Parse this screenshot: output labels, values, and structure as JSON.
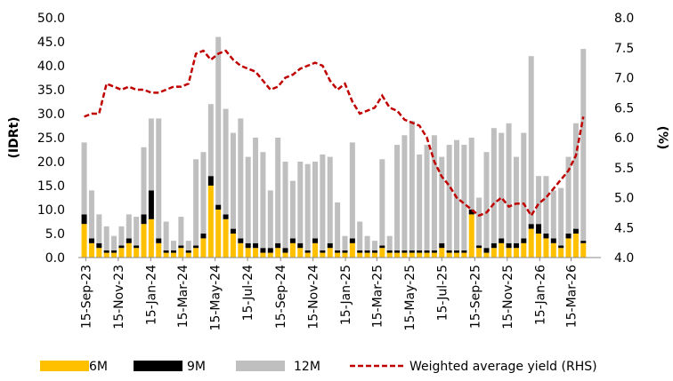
{
  "chart_data": {
    "type": "bar_line",
    "ylabel": "(IDRt)",
    "y2label": "(%)",
    "x": [
      "2023-09-12",
      "2023-09-26",
      "2023-10-10",
      "2023-10-24",
      "2023-11-07",
      "2023-11-21",
      "2023-12-05",
      "2023-12-19",
      "2024-01-02",
      "2024-01-16",
      "2024-01-30",
      "2024-02-13",
      "2024-02-27",
      "2024-03-12",
      "2024-03-26",
      "2024-04-09",
      "2024-04-23",
      "2024-05-07",
      "2024-05-21",
      "2024-06-04",
      "2024-06-18",
      "2024-07-02",
      "2024-07-16",
      "2024-07-30",
      "2024-08-13",
      "2024-08-27",
      "2024-09-10",
      "2024-09-24",
      "2024-10-08",
      "2024-10-22",
      "2024-11-05",
      "2024-11-19",
      "2024-12-03",
      "2024-12-17",
      "2024-12-31",
      "2025-01-14",
      "2025-01-28",
      "2025-02-11",
      "2025-02-25",
      "2025-03-11",
      "2025-03-25",
      "2025-04-08",
      "2025-04-22",
      "2025-05-06",
      "2025-05-20",
      "2025-06-03",
      "2025-06-17",
      "2025-07-01",
      "2025-07-15",
      "2025-07-29",
      "2025-08-12",
      "2025-08-26",
      "2025-09-09",
      "2025-09-23",
      "2025-10-07",
      "2025-10-21",
      "2025-11-04",
      "2025-11-18",
      "2025-12-02",
      "2025-12-16",
      "2025-12-30",
      "2026-01-13",
      "2026-01-27",
      "2026-02-10",
      "2026-02-24",
      "2026-03-10",
      "2026-03-24",
      "2026-04-07"
    ],
    "xlim": [
      "2023-09-01",
      "2026-05-10"
    ],
    "xticks": [
      {
        "value": "2023-09-15",
        "label": "15-Sep-23"
      },
      {
        "value": "2023-11-15",
        "label": "15-Nov-23"
      },
      {
        "value": "2024-01-15",
        "label": "15-Jan-24"
      },
      {
        "value": "2024-03-15",
        "label": "15-Mar-24"
      },
      {
        "value": "2024-05-15",
        "label": "15-May-24"
      },
      {
        "value": "2024-07-15",
        "label": "15-Jul-24"
      },
      {
        "value": "2024-09-15",
        "label": "15-Sep-24"
      },
      {
        "value": "2024-11-15",
        "label": "15-Nov-24"
      },
      {
        "value": "2025-01-15",
        "label": "15-Jan-25"
      },
      {
        "value": "2025-03-15",
        "label": "15-Mar-25"
      },
      {
        "value": "2025-05-15",
        "label": "15-May-25"
      },
      {
        "value": "2025-07-15",
        "label": "15-Jul-25"
      },
      {
        "value": "2025-09-15",
        "label": "15-Sep-25"
      },
      {
        "value": "2025-11-15",
        "label": "15-Nov-25"
      },
      {
        "value": "2026-01-15",
        "label": "15-Jan-26"
      },
      {
        "value": "2026-03-15",
        "label": "15-Mar-26"
      }
    ],
    "ylim": [
      0,
      50
    ],
    "yticks": [
      {
        "value": 0,
        "label": "0.0"
      },
      {
        "value": 5,
        "label": "5.0"
      },
      {
        "value": 10,
        "label": "10.0"
      },
      {
        "value": 15,
        "label": "15.0"
      },
      {
        "value": 20,
        "label": "20.0"
      },
      {
        "value": 25,
        "label": "25.0"
      },
      {
        "value": 30,
        "label": "30.0"
      },
      {
        "value": 35,
        "label": "35.0"
      },
      {
        "value": 40,
        "label": "40.0"
      },
      {
        "value": 45,
        "label": "45.0"
      },
      {
        "value": 50,
        "label": "50.0"
      }
    ],
    "y2lim": [
      4,
      8
    ],
    "y2ticks": [
      {
        "value": 4,
        "label": "4.0"
      },
      {
        "value": 4.5,
        "label": "4.5"
      },
      {
        "value": 5,
        "label": "5.0"
      },
      {
        "value": 5.5,
        "label": "5.5"
      },
      {
        "value": 6,
        "label": "6.0"
      },
      {
        "value": 6.5,
        "label": "6.5"
      },
      {
        "value": 7,
        "label": "7.0"
      },
      {
        "value": 7.5,
        "label": "7.5"
      },
      {
        "value": 8,
        "label": "8.0"
      }
    ],
    "series": [
      {
        "name": "6M",
        "color": "#ffc000",
        "values": [
          7,
          3,
          2,
          1,
          1,
          2,
          3,
          2,
          7,
          8,
          3,
          1,
          1,
          2,
          1,
          2,
          4,
          15,
          10,
          8,
          5,
          3,
          2,
          2,
          1,
          1,
          2,
          1,
          3,
          2,
          1,
          3,
          1,
          2,
          1,
          1,
          3,
          1,
          1,
          1,
          2,
          1,
          1,
          1,
          1,
          1,
          1,
          1,
          2,
          1,
          1,
          1,
          9,
          2,
          1,
          2,
          3,
          2,
          2,
          3,
          6,
          5,
          4,
          3,
          2,
          4,
          5,
          3
        ]
      },
      {
        "name": "9M",
        "color": "#000000",
        "values": [
          2,
          1,
          1,
          0.5,
          0.5,
          0.5,
          1,
          0.5,
          2,
          6,
          1,
          0.5,
          0.5,
          0.5,
          0.5,
          0.5,
          1,
          2,
          1,
          1,
          1,
          1,
          1,
          1,
          1,
          1,
          1,
          1,
          1,
          1,
          0.5,
          1,
          0.5,
          1,
          0.5,
          0.5,
          1,
          0.5,
          0.5,
          0.5,
          0.5,
          0.5,
          0.5,
          0.5,
          0.5,
          0.5,
          0.5,
          0.5,
          1,
          0.5,
          0.5,
          0.5,
          1,
          0.5,
          1,
          1,
          1,
          1,
          1,
          1,
          1,
          2,
          1,
          1,
          0.5,
          1,
          1,
          0.5
        ]
      },
      {
        "name": "12M",
        "color": "#bfbfbf",
        "values": [
          15,
          10,
          6,
          5,
          3,
          4,
          5,
          6,
          14,
          15,
          25,
          6,
          2,
          6,
          2,
          18,
          17,
          15,
          35,
          22,
          20,
          25,
          18,
          22,
          20,
          12,
          22,
          18,
          12,
          17,
          18,
          16,
          20,
          18,
          10,
          3,
          20,
          6,
          3,
          2,
          18,
          3,
          22,
          24,
          27,
          20,
          22,
          24,
          18,
          22,
          23,
          22,
          15,
          10,
          20,
          24,
          22,
          25,
          18,
          22,
          35,
          10,
          12,
          10,
          12,
          16,
          22,
          40
        ]
      },
      {
        "name": "Weighted average yield (RHS)",
        "color": "#c00000",
        "axis": "y2",
        "values": [
          6.35,
          6.4,
          6.4,
          6.9,
          6.85,
          6.8,
          6.85,
          6.8,
          6.8,
          6.75,
          6.75,
          6.8,
          6.85,
          6.85,
          6.9,
          7.4,
          7.45,
          7.3,
          7.4,
          7.45,
          7.3,
          7.2,
          7.15,
          7.1,
          6.95,
          6.8,
          6.85,
          7.0,
          7.05,
          7.15,
          7.2,
          7.25,
          7.2,
          6.95,
          6.8,
          6.9,
          6.6,
          6.4,
          6.45,
          6.5,
          6.7,
          6.5,
          6.45,
          6.3,
          6.25,
          6.2,
          6.0,
          5.6,
          5.35,
          5.2,
          5.0,
          4.9,
          4.8,
          4.7,
          4.75,
          4.9,
          5.0,
          4.85,
          4.9,
          4.9,
          4.7,
          4.9,
          5.0,
          5.15,
          5.3,
          5.45,
          5.7,
          6.35
        ]
      }
    ]
  }
}
